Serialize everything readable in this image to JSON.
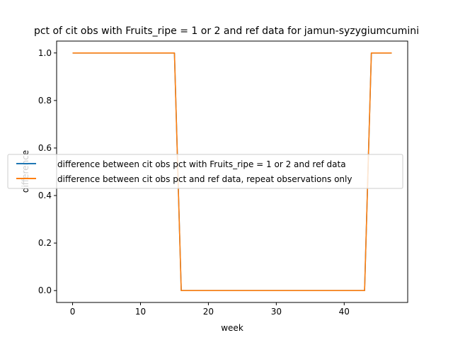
{
  "chart_data": {
    "type": "line",
    "title": "pct of cit obs with Fruits_ripe = 1 or 2 and ref data for jamun-syzygiumcumini",
    "xlabel": "week",
    "ylabel": "difference",
    "xlim": [
      -2.35,
      49.35
    ],
    "ylim": [
      -0.05,
      1.05
    ],
    "xticks": [
      0,
      10,
      20,
      30,
      40
    ],
    "yticks": [
      0.0,
      0.2,
      0.4,
      0.6,
      0.8,
      1.0
    ],
    "xtick_labels": [
      "0",
      "10",
      "20",
      "30",
      "40"
    ],
    "ytick_labels": [
      "0.0",
      "0.2",
      "0.4",
      "0.6",
      "0.8",
      "1.0"
    ],
    "legend_placement": "center-right",
    "x": [
      0,
      1,
      2,
      3,
      4,
      5,
      6,
      7,
      8,
      9,
      10,
      11,
      12,
      13,
      14,
      15,
      16,
      17,
      18,
      19,
      20,
      21,
      22,
      23,
      24,
      25,
      26,
      27,
      28,
      29,
      30,
      31,
      32,
      33,
      34,
      35,
      36,
      37,
      38,
      39,
      40,
      41,
      42,
      43,
      44,
      45,
      46,
      47
    ],
    "series": [
      {
        "name": "difference between cit obs pct with Fruits_ripe = 1 or 2 and ref data",
        "color": "#1f77b4",
        "values": [
          1,
          1,
          1,
          1,
          1,
          1,
          1,
          1,
          1,
          1,
          1,
          1,
          1,
          1,
          1,
          1,
          0,
          0,
          0,
          0,
          0,
          0,
          0,
          0,
          0,
          0,
          0,
          0,
          0,
          0,
          0,
          0,
          0,
          0,
          0,
          0,
          0,
          0,
          0,
          0,
          0,
          0,
          0,
          0,
          1,
          1,
          1,
          1
        ]
      },
      {
        "name": "difference between cit obs pct and ref data, repeat observations only",
        "color": "#ff7f0e",
        "values": [
          1,
          1,
          1,
          1,
          1,
          1,
          1,
          1,
          1,
          1,
          1,
          1,
          1,
          1,
          1,
          1,
          0,
          0,
          0,
          0,
          0,
          0,
          0,
          0,
          0,
          0,
          0,
          0,
          0,
          0,
          0,
          0,
          0,
          0,
          0,
          0,
          0,
          0,
          0,
          0,
          0,
          0,
          0,
          0,
          1,
          1,
          1,
          1
        ]
      }
    ]
  }
}
